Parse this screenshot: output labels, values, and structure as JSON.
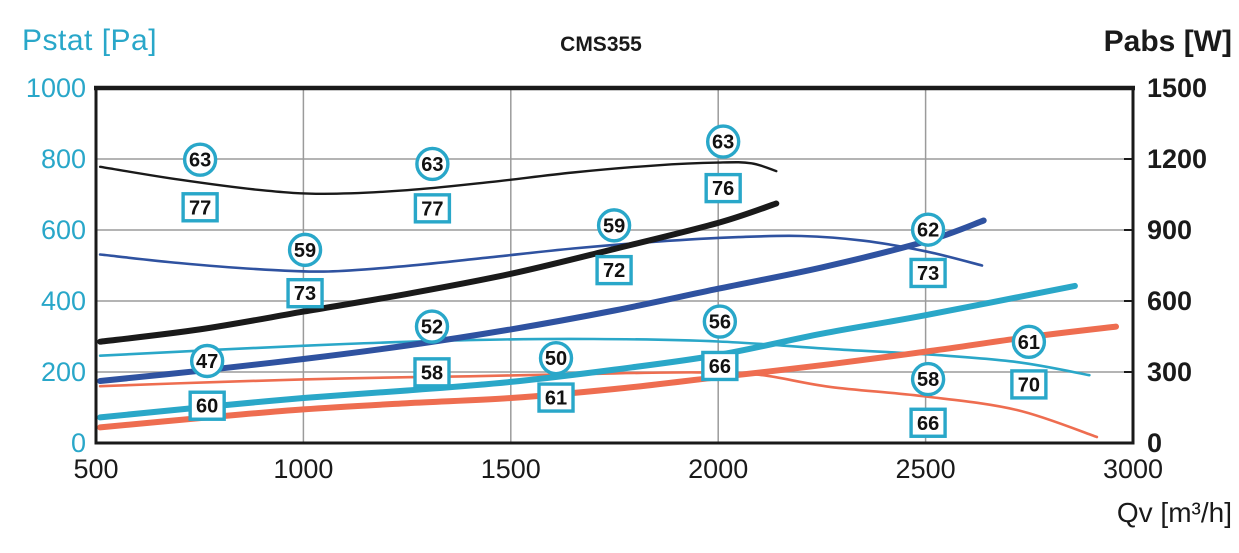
{
  "title": "CMS355",
  "axes": {
    "left": {
      "label": "Pstat [Pa]",
      "color": "#29A7C9",
      "range": [
        0,
        1000
      ],
      "ticks": [
        0,
        200,
        400,
        600,
        800,
        1000
      ]
    },
    "right": {
      "label": "Pabs [W]",
      "color": "#1A1A1A",
      "range": [
        0,
        1500
      ],
      "ticks": [
        0,
        300,
        600,
        900,
        1200,
        1500
      ]
    },
    "x": {
      "label": "Qv [m³/h]",
      "color": "#1A1A1A",
      "range": [
        500,
        3000
      ],
      "ticks": [
        500,
        1000,
        1500,
        2000,
        2500,
        3000
      ]
    }
  },
  "style": {
    "grid_color": "#9B9B9B",
    "border_color": "#1A1A1A",
    "label_outline_color": "#29A7C9",
    "label_text_color": "#111111",
    "series_colors": {
      "speed1": "#1A1A1A",
      "speed2": "#2F52A0",
      "speed3": "#2AA7C8",
      "speed4": "#EE6D50"
    }
  },
  "chart_data": {
    "type": "line",
    "title": "CMS355",
    "xlabel": "Qv [m³/h]",
    "ylabel_left": "Pstat [Pa]",
    "ylabel_right": "Pabs [W]",
    "x_range": [
      500,
      3000
    ],
    "left_range": [
      0,
      1000
    ],
    "right_range": [
      0,
      1500
    ],
    "grid": true,
    "legend": "none",
    "series": [
      {
        "name": "speed1-pstat",
        "speed": "speed1",
        "axis": "left",
        "color": "#1A1A1A",
        "width": 2.4,
        "points": [
          [
            510,
            778
          ],
          [
            700,
            742
          ],
          [
            900,
            712
          ],
          [
            1050,
            702
          ],
          [
            1250,
            712
          ],
          [
            1450,
            735
          ],
          [
            1650,
            762
          ],
          [
            1850,
            782
          ],
          [
            2000,
            790
          ],
          [
            2080,
            788
          ],
          [
            2140,
            766
          ]
        ]
      },
      {
        "name": "speed2-pstat",
        "speed": "speed2",
        "axis": "left",
        "color": "#2F52A0",
        "width": 2.6,
        "points": [
          [
            510,
            531
          ],
          [
            700,
            507
          ],
          [
            900,
            489
          ],
          [
            1060,
            483
          ],
          [
            1250,
            499
          ],
          [
            1450,
            523
          ],
          [
            1650,
            548
          ],
          [
            1850,
            567
          ],
          [
            2050,
            580
          ],
          [
            2200,
            583
          ],
          [
            2350,
            570
          ],
          [
            2500,
            540
          ],
          [
            2636,
            500
          ]
        ]
      },
      {
        "name": "speed3-pstat",
        "speed": "speed3",
        "axis": "left",
        "color": "#2AA7C8",
        "width": 2.6,
        "points": [
          [
            510,
            246
          ],
          [
            800,
            263
          ],
          [
            1100,
            279
          ],
          [
            1400,
            290
          ],
          [
            1700,
            293
          ],
          [
            2000,
            286
          ],
          [
            2270,
            265
          ],
          [
            2500,
            250
          ],
          [
            2720,
            228
          ],
          [
            2895,
            191
          ]
        ]
      },
      {
        "name": "speed4-pstat",
        "speed": "speed4",
        "axis": "left",
        "color": "#EE6D50",
        "width": 2.6,
        "points": [
          [
            510,
            160
          ],
          [
            800,
            172
          ],
          [
            1100,
            182
          ],
          [
            1400,
            188
          ],
          [
            1700,
            195
          ],
          [
            1950,
            199
          ],
          [
            2100,
            192
          ],
          [
            2270,
            158
          ],
          [
            2500,
            131
          ],
          [
            2720,
            93
          ],
          [
            2913,
            17
          ]
        ]
      },
      {
        "name": "speed1-pabs",
        "speed": "speed1",
        "axis": "right",
        "color": "#1A1A1A",
        "width": 6,
        "points": [
          [
            510,
            428
          ],
          [
            750,
            480
          ],
          [
            1000,
            555
          ],
          [
            1250,
            630
          ],
          [
            1500,
            715
          ],
          [
            1750,
            820
          ],
          [
            2000,
            930
          ],
          [
            2140,
            1012
          ]
        ]
      },
      {
        "name": "speed2-pabs",
        "speed": "speed2",
        "axis": "right",
        "color": "#2F52A0",
        "width": 6,
        "points": [
          [
            510,
            262
          ],
          [
            750,
            305
          ],
          [
            1000,
            355
          ],
          [
            1250,
            412
          ],
          [
            1500,
            480
          ],
          [
            1750,
            560
          ],
          [
            2000,
            652
          ],
          [
            2250,
            742
          ],
          [
            2500,
            852
          ],
          [
            2640,
            940
          ]
        ]
      },
      {
        "name": "speed3-pabs",
        "speed": "speed3",
        "axis": "right",
        "color": "#2AA7C8",
        "width": 6,
        "points": [
          [
            510,
            108
          ],
          [
            750,
            150
          ],
          [
            1000,
            190
          ],
          [
            1250,
            222
          ],
          [
            1500,
            258
          ],
          [
            1750,
            310
          ],
          [
            2000,
            372
          ],
          [
            2250,
            462
          ],
          [
            2500,
            540
          ],
          [
            2860,
            664
          ]
        ]
      },
      {
        "name": "speed4-pabs",
        "speed": "speed4",
        "axis": "right",
        "color": "#EE6D50",
        "width": 6,
        "points": [
          [
            510,
            66
          ],
          [
            750,
            105
          ],
          [
            1000,
            142
          ],
          [
            1250,
            168
          ],
          [
            1500,
            190
          ],
          [
            1750,
            228
          ],
          [
            2000,
            278
          ],
          [
            2270,
            333
          ],
          [
            2513,
            389
          ],
          [
            2750,
            448
          ],
          [
            2959,
            492
          ]
        ]
      }
    ],
    "noise_labels": [
      {
        "speed": "speed1",
        "q": 751,
        "circle": {
          "text": "63",
          "p": 798
        },
        "square": {
          "text": "77",
          "p": 664
        }
      },
      {
        "speed": "speed1",
        "q": 1311,
        "circle": {
          "text": "63",
          "p": 786
        },
        "square": {
          "text": "77",
          "p": 661
        }
      },
      {
        "speed": "speed1",
        "q": 2012,
        "circle": {
          "text": "63",
          "p": 849
        },
        "square": {
          "text": "76",
          "p": 718
        }
      },
      {
        "speed": "speed2",
        "q": 1004,
        "circle": {
          "text": "59",
          "p": 544
        },
        "square": {
          "text": "73",
          "p": 422
        }
      },
      {
        "speed": "speed2",
        "q": 1749,
        "circle": {
          "text": "59",
          "p": 613
        },
        "square": {
          "text": "72",
          "p": 487
        }
      },
      {
        "speed": "speed2",
        "q": 2506,
        "circle": {
          "text": "62",
          "p": 601
        },
        "square": {
          "text": "73",
          "p": 479
        }
      },
      {
        "speed": "speed3",
        "q": 768,
        "circle": {
          "text": "47",
          "p": 231
        },
        "square": {
          "text": "60",
          "p": 105
        }
      },
      {
        "speed": "speed3",
        "q": 1310,
        "circle": {
          "text": "52",
          "p": 328
        },
        "square": {
          "text": "58",
          "p": 199
        }
      },
      {
        "speed": "speed3",
        "q": 2004,
        "circle": {
          "text": "56",
          "p": 342
        },
        "square": {
          "text": "66",
          "p": 217
        }
      },
      {
        "speed": "speed3",
        "q": 2749,
        "circle": {
          "text": "61",
          "p": 285
        },
        "square": {
          "text": "70",
          "p": 165
        }
      },
      {
        "speed": "speed4",
        "q": 1609,
        "circle": {
          "text": "50",
          "p": 239
        },
        "square": {
          "text": "61",
          "p": 128
        }
      },
      {
        "speed": "speed4",
        "q": 2506,
        "circle": {
          "text": "58",
          "p": 180
        },
        "square": {
          "text": "66",
          "p": 57
        }
      }
    ]
  }
}
